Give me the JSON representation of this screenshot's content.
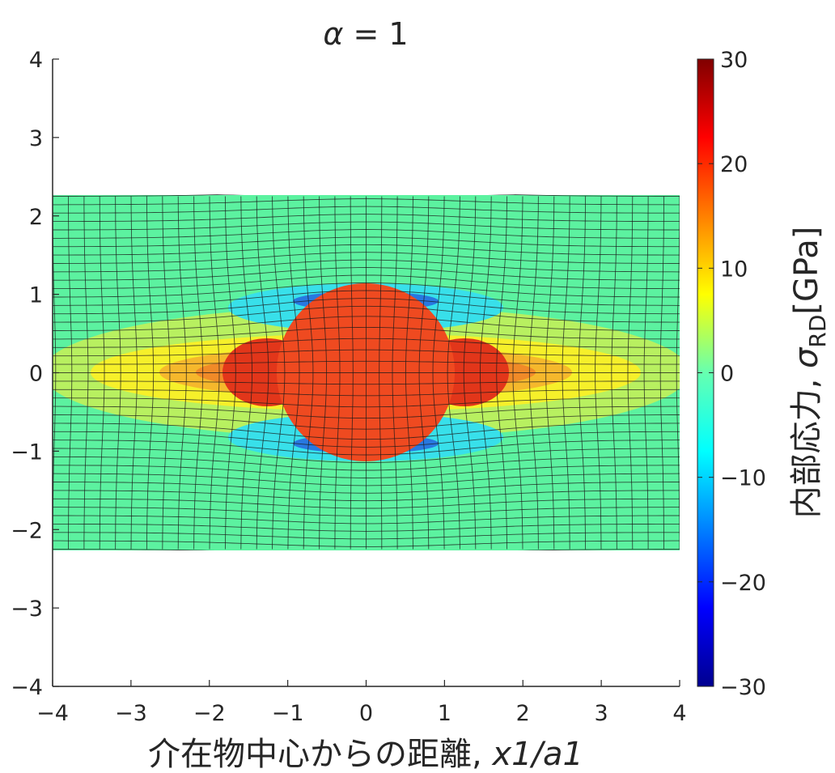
{
  "chart_data": {
    "type": "heatmap",
    "title": {
      "symbol": "α",
      "text": " = 1"
    },
    "xlabel": {
      "text": "介在物中心からの距離, ",
      "italic": "x1/a1"
    },
    "colorbar_label": {
      "text": "内部応力, ",
      "symbol": "σ",
      "subscript": "RD",
      "unit": "[GPa]"
    },
    "xlim": [
      -4,
      4
    ],
    "ylim": [
      -4,
      4
    ],
    "clim": [
      -30,
      30
    ],
    "xticks": [
      "−4",
      "−3",
      "−2",
      "−1",
      "0",
      "1",
      "2",
      "3",
      "4"
    ],
    "yticks": [
      "4",
      "3",
      "2",
      "1",
      "0",
      "−1",
      "−2",
      "−3",
      "−4"
    ],
    "colorbar_ticks": [
      "30",
      "20",
      "10",
      "0",
      "−10",
      "−20",
      "−30"
    ],
    "colormap": "jet",
    "inclusion": {
      "center": [
        0,
        0
      ],
      "radius": 0.87,
      "stress": 20
    },
    "matrix_band": {
      "y_range": [
        -2.25,
        2.25
      ],
      "far_field_stress": -3
    },
    "grid": "deformed mesh"
  }
}
